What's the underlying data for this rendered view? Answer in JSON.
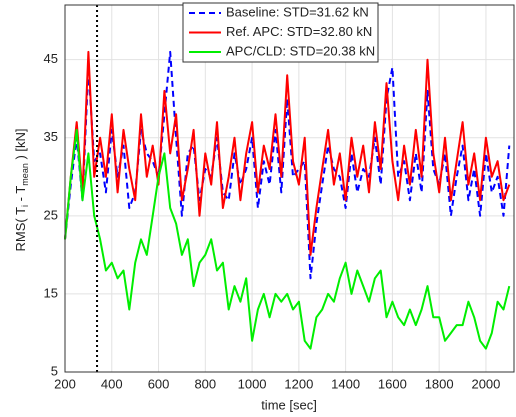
{
  "chart_data": {
    "type": "line",
    "x_label": "time [sec]",
    "y_label": [
      "RMS( T",
      "i",
      " - T",
      "mean",
      " ) [kN]"
    ],
    "x": [
      200,
      225,
      250,
      275,
      300,
      325,
      350,
      375,
      400,
      425,
      450,
      475,
      500,
      525,
      550,
      575,
      600,
      625,
      650,
      675,
      700,
      725,
      750,
      775,
      800,
      825,
      850,
      875,
      900,
      925,
      950,
      975,
      1000,
      1025,
      1050,
      1075,
      1100,
      1125,
      1150,
      1175,
      1200,
      1225,
      1250,
      1275,
      1300,
      1325,
      1350,
      1375,
      1400,
      1425,
      1450,
      1475,
      1500,
      1525,
      1550,
      1575,
      1600,
      1625,
      1650,
      1675,
      1700,
      1725,
      1750,
      1775,
      1800,
      1825,
      1850,
      1875,
      1900,
      1925,
      1950,
      1975,
      2000,
      2025,
      2050,
      2075,
      2100
    ],
    "series": [
      {
        "name": "Baseline: STD=31.62 kN",
        "color": "#0000ff",
        "dash": true,
        "values": [
          22,
          29,
          35,
          27,
          44,
          32,
          33,
          28,
          36,
          30,
          34,
          26,
          28,
          36,
          33,
          32,
          30,
          38,
          46,
          35,
          25,
          33,
          34,
          27,
          31,
          30,
          35,
          28,
          27,
          33,
          29,
          31,
          35,
          26,
          32,
          29,
          36,
          28,
          40,
          30,
          31,
          32,
          17,
          24,
          29,
          34,
          31,
          30,
          26,
          33,
          28,
          31,
          30,
          35,
          29,
          40,
          44,
          30,
          32,
          27,
          33,
          28,
          41,
          31,
          29,
          33,
          25,
          30,
          34,
          27,
          31,
          25,
          33,
          28,
          30,
          25,
          34
        ]
      },
      {
        "name": "Ref. APC: STD=32.80 kN",
        "color": "#ff0000",
        "dash": false,
        "values": [
          22,
          30,
          37,
          28,
          46,
          30,
          35,
          30,
          38,
          28,
          36,
          31,
          27,
          38,
          30,
          34,
          29,
          41,
          33,
          38,
          27,
          31,
          36,
          25,
          33,
          29,
          37,
          26,
          30,
          35,
          27,
          33,
          37,
          28,
          34,
          31,
          38,
          30,
          43,
          32,
          29,
          35,
          20,
          26,
          31,
          36,
          29,
          33,
          27,
          35,
          30,
          34,
          28,
          37,
          31,
          42,
          32,
          27,
          34,
          29,
          36,
          30,
          45,
          33,
          28,
          35,
          27,
          32,
          37,
          29,
          33,
          27,
          35,
          30,
          32,
          27,
          29
        ]
      },
      {
        "name": "APC/CLD: STD=20.38 kN",
        "color": "#00ee00",
        "dash": false,
        "values": [
          22,
          30,
          36,
          27,
          33,
          25,
          22,
          18,
          19,
          17,
          18,
          13,
          19,
          22,
          20,
          25,
          30,
          33,
          26,
          24,
          20,
          22,
          16,
          19,
          20,
          22,
          18,
          19,
          13,
          16,
          14,
          17,
          9,
          13,
          15,
          12,
          15,
          14,
          15,
          13,
          14,
          9,
          8,
          12,
          13,
          15,
          14,
          17,
          19,
          15,
          18,
          16,
          14,
          17,
          18,
          12,
          14,
          12,
          11,
          13,
          11,
          13,
          16,
          12,
          12,
          9,
          10,
          11,
          11,
          14,
          12,
          9,
          8,
          10,
          14,
          13,
          16
        ]
      }
    ],
    "xlim": [
      200,
      2120
    ],
    "ylim": [
      5,
      52
    ],
    "xticks": [
      200,
      400,
      600,
      800,
      1000,
      1200,
      1400,
      1600,
      1800,
      2000
    ],
    "yticks": [
      5,
      15,
      25,
      35,
      45
    ],
    "vline": 337,
    "grid": true
  }
}
